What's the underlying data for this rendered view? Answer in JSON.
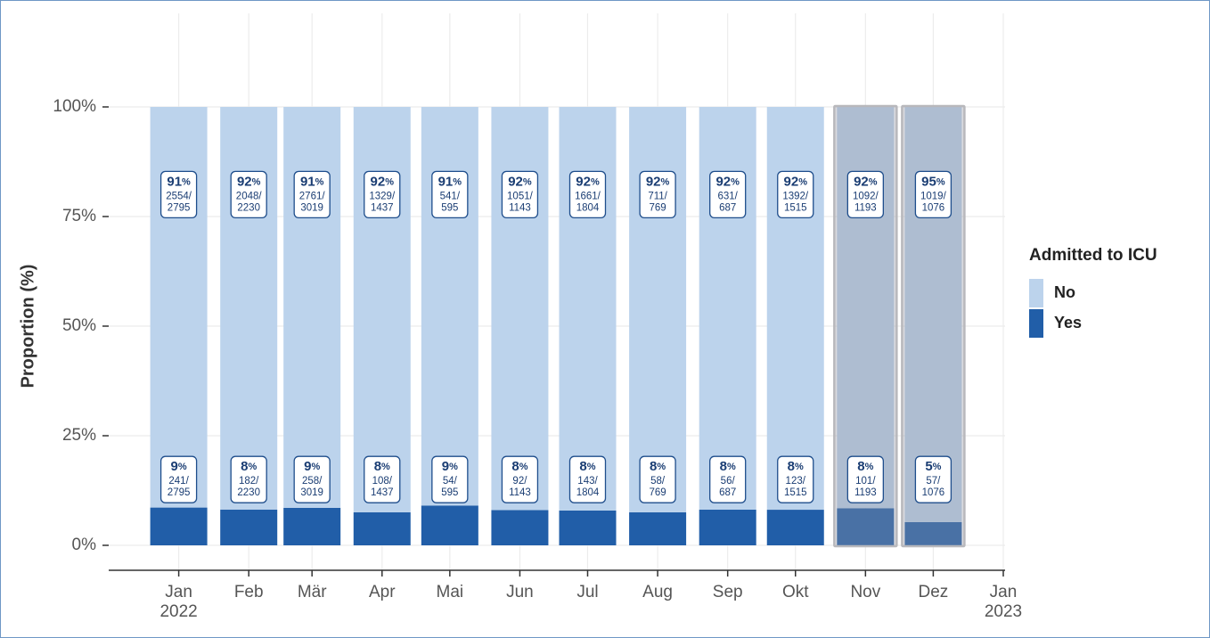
{
  "chart_data": {
    "type": "stacked_bar_100",
    "x": [
      "2022-01",
      "2022-02",
      "2022-03",
      "2022-04",
      "2022-05",
      "2022-06",
      "2022-07",
      "2022-08",
      "2022-09",
      "2022-10",
      "2022-11",
      "2022-12"
    ],
    "xlim": [
      "2021-12",
      "2023-01"
    ],
    "xticks": [
      {
        "value": "2022-01",
        "label": "Jan\n2022"
      },
      {
        "value": "2022-02",
        "label": "Feb"
      },
      {
        "value": "2022-03",
        "label": "Mär"
      },
      {
        "value": "2022-04",
        "label": "Apr"
      },
      {
        "value": "2022-05",
        "label": "Mai"
      },
      {
        "value": "2022-06",
        "label": "Jun"
      },
      {
        "value": "2022-07",
        "label": "Jul"
      },
      {
        "value": "2022-08",
        "label": "Aug"
      },
      {
        "value": "2022-09",
        "label": "Sep"
      },
      {
        "value": "2022-10",
        "label": "Okt"
      },
      {
        "value": "2022-11",
        "label": "Nov"
      },
      {
        "value": "2022-12",
        "label": "Dez"
      },
      {
        "value": "2023-01",
        "label": "Jan\n2023"
      }
    ],
    "ylabel": "Proportion (%)",
    "ylim": [
      0,
      100
    ],
    "yticks": [
      {
        "value": 0,
        "label": "0%"
      },
      {
        "value": 25,
        "label": "25%"
      },
      {
        "value": 50,
        "label": "50%"
      },
      {
        "value": 75,
        "label": "75%"
      },
      {
        "value": 100,
        "label": "100%"
      }
    ],
    "grid": true,
    "legend_title": "Admitted to ICU",
    "legend_position": "right",
    "highlight_x": [
      "2022-11",
      "2022-12"
    ],
    "series": [
      {
        "name": "No",
        "color": "#bcd3ec",
        "values": [
          91.38,
          91.84,
          91.45,
          92.48,
          90.92,
          91.95,
          92.07,
          92.46,
          91.85,
          91.88,
          91.53,
          94.7
        ],
        "value_labels": [
          "91%",
          "92%",
          "91%",
          "92%",
          "91%",
          "92%",
          "92%",
          "92%",
          "92%",
          "92%",
          "92%",
          "95%"
        ],
        "count_labels": [
          "2554/\n2795",
          "2048/\n2230",
          "2761/\n3019",
          "1329/\n1437",
          "541/\n595",
          "1051/\n1143",
          "1661/\n1804",
          "711/\n769",
          "631/\n687",
          "1392/\n1515",
          "1092/\n1193",
          "1019/\n1076"
        ]
      },
      {
        "name": "Yes",
        "color": "#215ea8",
        "values": [
          8.62,
          8.16,
          8.55,
          7.52,
          9.08,
          8.05,
          7.93,
          7.54,
          8.15,
          8.12,
          8.47,
          5.3
        ],
        "value_labels": [
          "9%",
          "8%",
          "9%",
          "8%",
          "9%",
          "8%",
          "8%",
          "8%",
          "8%",
          "8%",
          "8%",
          "5%"
        ],
        "count_labels": [
          "241/\n2795",
          "182/\n2230",
          "258/\n3019",
          "108/\n1437",
          "54/\n595",
          "92/\n1143",
          "143/\n1804",
          "58/\n769",
          "56/\n687",
          "123/\n1515",
          "101/\n1193",
          "57/\n1076"
        ]
      }
    ]
  }
}
